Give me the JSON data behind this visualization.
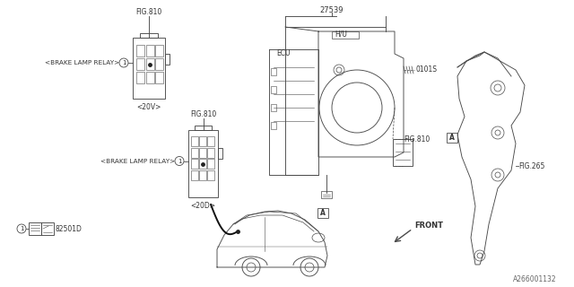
{
  "bg_color": "#ffffff",
  "lc": "#4a4a4a",
  "tc": "#333333",
  "fig_width": 6.4,
  "fig_height": 3.2,
  "dpi": 100,
  "watermark": "A266001132",
  "lw": 0.65,
  "labels": {
    "fig810_top": "FIG.810",
    "fig810_mid": "FIG.810",
    "fig810_right": "FIG.810",
    "fig265": "FIG.265",
    "part_27539": "27539",
    "hu": "H/U",
    "ecu": "ECU",
    "part_0101S": "0101S",
    "brake_lamp_relay_top": "<BRAKE LAMP RELAY>",
    "brake_lamp_relay_bot": "<BRAKE LAMP RELAY>",
    "label_20V": "<20V>",
    "label_20D": "<20D>",
    "part_82501D": "82501D",
    "front": "FRONT",
    "circle_1": "1",
    "A_label1": "A",
    "A_label2": "A"
  }
}
